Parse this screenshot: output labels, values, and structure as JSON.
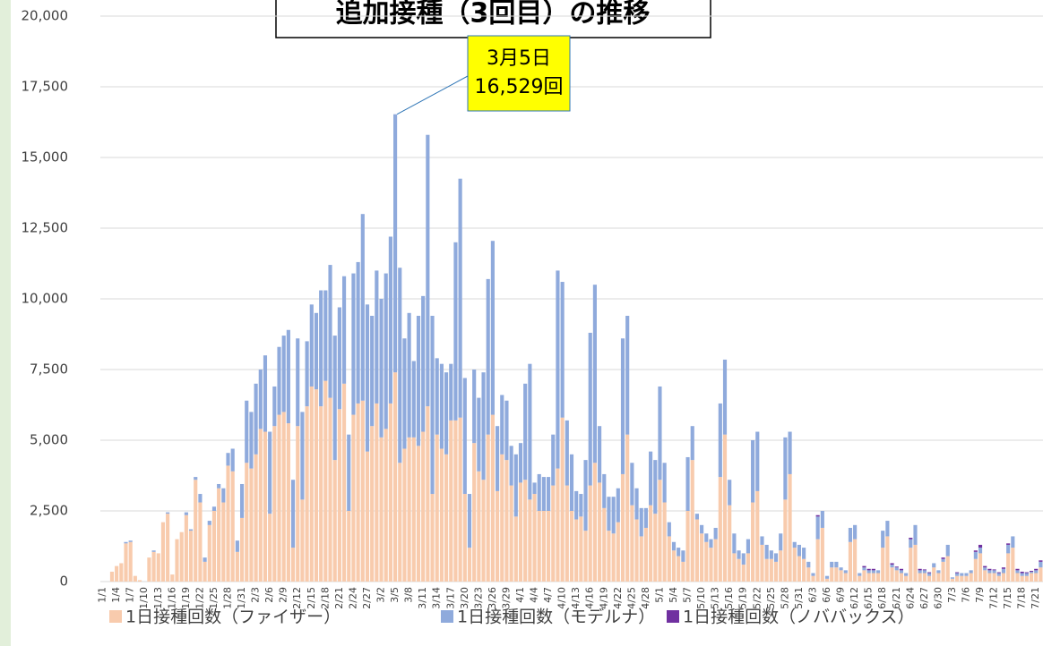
{
  "chart_data": {
    "type": "stacked_bar",
    "title": "追加接種（3回目）の推移",
    "annotation": {
      "lines": [
        "3月5日",
        "16,529回"
      ],
      "index": 63
    },
    "categories": [
      "1/1",
      null,
      null,
      "1/4",
      null,
      null,
      "1/7",
      null,
      null,
      "1/10",
      null,
      null,
      "1/13",
      null,
      null,
      "1/16",
      null,
      null,
      "1/19",
      null,
      null,
      "1/22",
      null,
      null,
      "1/25",
      null,
      null,
      "1/28",
      null,
      null,
      "1/31",
      null,
      null,
      "2/3",
      null,
      null,
      "2/6",
      null,
      null,
      "2/9",
      null,
      null,
      "2/12",
      null,
      null,
      "2/15",
      null,
      null,
      "2/18",
      null,
      null,
      "2/21",
      null,
      null,
      "2/24",
      null,
      null,
      "2/27",
      null,
      null,
      "3/2",
      null,
      null,
      "3/5",
      null,
      null,
      "3/8",
      null,
      null,
      "3/11",
      null,
      null,
      "3/14",
      null,
      null,
      "3/17",
      null,
      null,
      "3/20",
      null,
      null,
      "3/23",
      null,
      null,
      "3/26",
      null,
      null,
      "3/29",
      null,
      null,
      "4/1",
      null,
      null,
      "4/4",
      null,
      null,
      "4/7",
      null,
      null,
      "4/10",
      null,
      null,
      "4/13",
      null,
      null,
      "4/16",
      null,
      null,
      "4/19",
      null,
      null,
      "4/22",
      null,
      null,
      "4/25",
      null,
      null,
      "4/28",
      null,
      null,
      "5/1",
      null,
      null,
      "5/4",
      null,
      null,
      "5/7",
      null,
      null,
      "5/10",
      null,
      null,
      "5/13",
      null,
      null,
      "5/16",
      null,
      null,
      "5/19",
      null,
      null,
      "5/22",
      null,
      null,
      "5/25",
      null,
      null,
      "5/28",
      null,
      null,
      "5/31",
      null,
      null,
      "6/3",
      null,
      null,
      "6/6",
      null,
      null,
      "6/9",
      null,
      null,
      "6/12",
      null,
      null,
      "6/15",
      null,
      null,
      "6/18",
      null,
      null,
      "6/21",
      null,
      null,
      "6/24",
      null,
      null,
      "6/27",
      null,
      null,
      "6/30",
      null,
      null,
      "7/3",
      null,
      null,
      "7/6",
      null,
      null,
      "7/9",
      null,
      null,
      "7/12",
      null,
      null,
      "7/15",
      null,
      null,
      "7/18",
      null,
      null,
      "7/21",
      null
    ],
    "series": [
      {
        "name": "1日接種回数（ファイザー）",
        "color": "#f8cbad",
        "values": [
          0,
          0,
          350,
          550,
          650,
          1350,
          1400,
          200,
          50,
          0,
          850,
          1050,
          1000,
          2100,
          2400,
          250,
          1500,
          1750,
          2350,
          1800,
          3600,
          2800,
          700,
          2000,
          2500,
          3300,
          2800,
          4100,
          3900,
          1050,
          2250,
          4200,
          4000,
          4500,
          5400,
          5300,
          2400,
          5500,
          5900,
          6000,
          5600,
          1200,
          5500,
          2900,
          6200,
          6900,
          6800,
          6200,
          7100,
          6500,
          4300,
          6100,
          7000,
          2500,
          5900,
          6300,
          6400,
          4600,
          5500,
          6300,
          5100,
          5400,
          6300,
          7400,
          4200,
          4700,
          5100,
          5100,
          4800,
          5300,
          6200,
          3100,
          5200,
          4700,
          4500,
          5700,
          5700,
          5800,
          3100,
          1200,
          4900,
          3900,
          3600,
          5200,
          5900,
          3200,
          4500,
          4300,
          3400,
          2300,
          3500,
          3600,
          2900,
          3100,
          2500,
          2500,
          2500,
          3400,
          4000,
          5800,
          3400,
          2500,
          2200,
          2300,
          1800,
          3400,
          4200,
          3500,
          2600,
          1800,
          1700,
          2100,
          3800,
          5200,
          2700,
          2200,
          1600,
          1900,
          2700,
          2400,
          3600,
          2800,
          1600,
          1100,
          900,
          700,
          2500,
          4300,
          2200,
          1700,
          1400,
          1200,
          1500,
          3700,
          5200,
          2700,
          1000,
          800,
          600,
          1000,
          2800,
          3200,
          1300,
          800,
          800,
          700,
          1100,
          2900,
          3800,
          1200,
          900,
          800,
          500,
          200,
          1500,
          1900,
          100,
          500,
          500,
          400,
          300,
          1400,
          1500,
          200,
          400,
          300,
          300,
          300,
          1200,
          1600,
          500,
          400,
          300,
          200,
          1200,
          1300,
          300,
          300,
          200,
          500,
          300,
          700,
          900,
          100,
          200,
          200,
          200,
          300,
          800,
          1000,
          400,
          300,
          300,
          200,
          300,
          1000,
          1200,
          300,
          200,
          200,
          300,
          300,
          500
        ]
      },
      {
        "name": "1日接種回数（モデルナ）",
        "color": "#8faadc",
        "values": [
          0,
          0,
          0,
          0,
          0,
          50,
          50,
          0,
          0,
          0,
          0,
          50,
          0,
          0,
          50,
          0,
          0,
          0,
          100,
          50,
          100,
          300,
          150,
          150,
          150,
          150,
          500,
          450,
          800,
          400,
          1200,
          2200,
          2000,
          2500,
          2100,
          2700,
          2900,
          1400,
          2400,
          2700,
          3300,
          2400,
          3100,
          3100,
          2300,
          2900,
          2700,
          4100,
          3200,
          4700,
          4400,
          3600,
          3800,
          2700,
          5000,
          5000,
          6600,
          5200,
          3900,
          4700,
          4900,
          5500,
          5900,
          9129,
          6900,
          3900,
          4400,
          2700,
          4600,
          4800,
          9600,
          6300,
          2700,
          3000,
          2900,
          2000,
          6300,
          8450,
          4100,
          1900,
          2600,
          2600,
          3800,
          5500,
          6150,
          2300,
          2100,
          2100,
          1400,
          2200,
          1400,
          3400,
          4800,
          400,
          1300,
          1200,
          1200,
          1800,
          7000,
          4800,
          2300,
          2000,
          1000,
          800,
          2500,
          5400,
          6300,
          2000,
          1200,
          1200,
          1300,
          1200,
          4800,
          4200,
          1500,
          1100,
          1000,
          700,
          1900,
          1900,
          3300,
          1400,
          500,
          300,
          300,
          400,
          1900,
          1200,
          200,
          300,
          300,
          300,
          400,
          2600,
          2650,
          900,
          700,
          300,
          400,
          500,
          2200,
          2100,
          300,
          500,
          300,
          300,
          600,
          2200,
          1500,
          200,
          400,
          400,
          200,
          100,
          800,
          600,
          100,
          200,
          200,
          100,
          100,
          500,
          500,
          100,
          100,
          100,
          100,
          100,
          600,
          550,
          100,
          100,
          100,
          100,
          300,
          700,
          100,
          100,
          100,
          150,
          100,
          100,
          400,
          50,
          100,
          100,
          100,
          100,
          250,
          200,
          100,
          100,
          100,
          100,
          150,
          300,
          400,
          100,
          100,
          100,
          50,
          100,
          200
        ]
      },
      {
        "name": "1日接種回数（ノババックス）",
        "color": "#7030a0",
        "values": [
          0,
          0,
          0,
          0,
          0,
          0,
          0,
          0,
          0,
          0,
          0,
          0,
          0,
          0,
          0,
          0,
          0,
          0,
          0,
          0,
          0,
          0,
          0,
          0,
          0,
          0,
          0,
          0,
          0,
          0,
          0,
          0,
          0,
          0,
          0,
          0,
          0,
          0,
          0,
          0,
          0,
          0,
          0,
          0,
          0,
          0,
          0,
          0,
          0,
          0,
          0,
          0,
          0,
          0,
          0,
          0,
          0,
          0,
          0,
          0,
          0,
          0,
          0,
          0,
          0,
          0,
          0,
          0,
          0,
          0,
          0,
          0,
          0,
          0,
          0,
          0,
          0,
          0,
          0,
          0,
          0,
          0,
          0,
          0,
          0,
          0,
          0,
          0,
          0,
          0,
          0,
          0,
          0,
          0,
          0,
          0,
          0,
          0,
          0,
          0,
          0,
          0,
          0,
          0,
          0,
          0,
          0,
          0,
          0,
          0,
          0,
          0,
          0,
          0,
          0,
          0,
          0,
          0,
          0,
          0,
          0,
          0,
          0,
          0,
          0,
          0,
          0,
          0,
          0,
          0,
          0,
          0,
          0,
          0,
          0,
          0,
          0,
          0,
          0,
          0,
          0,
          0,
          0,
          0,
          0,
          0,
          0,
          0,
          0,
          0,
          0,
          0,
          0,
          0,
          50,
          0,
          0,
          0,
          0,
          0,
          0,
          0,
          0,
          0,
          50,
          50,
          50,
          0,
          0,
          0,
          50,
          30,
          50,
          0,
          50,
          0,
          50,
          30,
          30,
          0,
          0,
          50,
          0,
          0,
          30,
          0,
          0,
          0,
          50,
          100,
          50,
          50,
          30,
          30,
          50,
          50,
          0,
          50,
          50,
          30,
          30,
          50,
          50
        ]
      }
    ],
    "ylim": [
      0,
      20000
    ],
    "yticks": [
      0,
      {
        "value": 2500,
        "label": "2,500"
      },
      {
        "value": 5000,
        "label": "5,000"
      },
      {
        "value": 7500,
        "label": "7,500"
      },
      {
        "value": 10000,
        "label": "10,000"
      },
      {
        "value": 12500,
        "label": "12,500"
      },
      {
        "value": 15000,
        "label": "15,000"
      },
      {
        "value": 17500,
        "label": "17,500"
      },
      {
        "value": 20000,
        "label": "20,000"
      }
    ],
    "grid": true
  }
}
